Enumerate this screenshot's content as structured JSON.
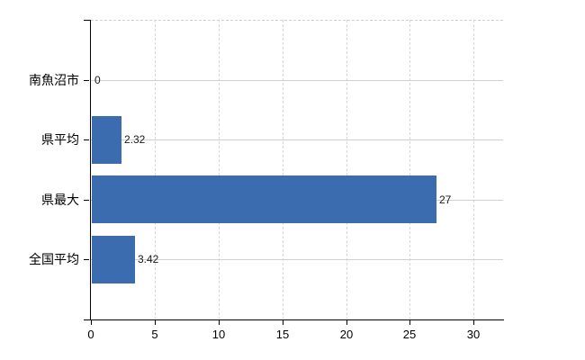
{
  "chart_data": {
    "type": "bar",
    "orientation": "horizontal",
    "title": "",
    "categories": [
      "南魚沼市",
      "県平均",
      "県最大",
      "全国平均"
    ],
    "values": [
      0,
      2.32,
      27,
      3.42
    ],
    "value_labels": [
      "0",
      "2.32",
      "27",
      "3.42"
    ],
    "x_ticks": [
      0,
      5,
      10,
      15,
      20,
      25,
      30
    ],
    "xlim": [
      0,
      32.3
    ],
    "grid": true,
    "legend_visible": false,
    "colors": {
      "bar": "#3c6cb0",
      "axis": "#000000",
      "grid_horizontal": "#ccd3cc",
      "grid_vertical": "#d8d8d8",
      "plot_top_border": "#d0d0d0",
      "value_label": "#1a1a1a",
      "tick_label": "#000000"
    }
  }
}
